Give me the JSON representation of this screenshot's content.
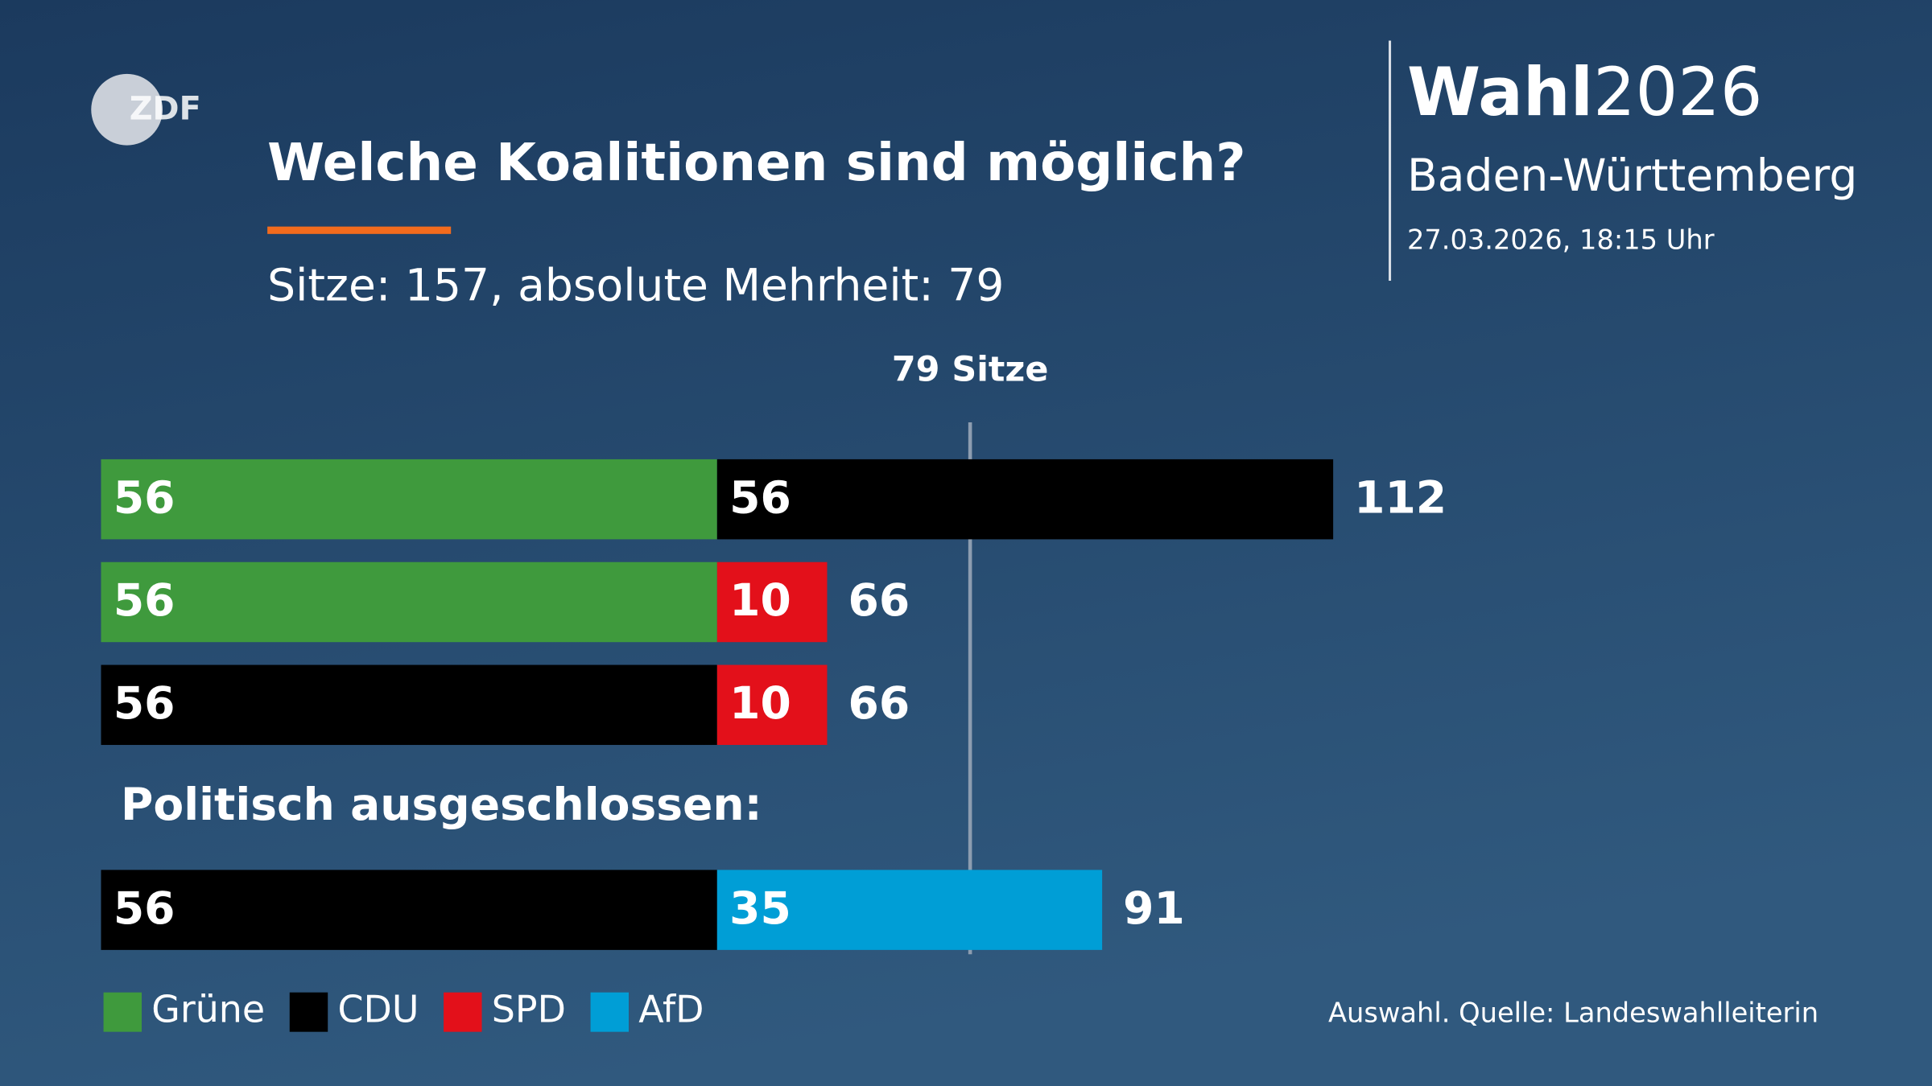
{
  "logo": "ZDF",
  "brand": {
    "bold": "Wahl",
    "year": "2026",
    "region": "Baden-Württemberg",
    "date": "27.03.2026, 18:15 Uhr"
  },
  "chart_data": {
    "type": "stacked-bar-horizontal",
    "title": "Welche Koalitionen sind möglich?",
    "subtitle": "Sitze: 157, absolute Mehrheit: 79",
    "categories": [
      null,
      null,
      null,
      null
    ],
    "series": [
      {
        "name": "Grüne",
        "color": "#3f9a3d",
        "values": [
          56,
          56,
          null,
          null
        ]
      },
      {
        "name": "CDU",
        "color": "#000000",
        "values": [
          56,
          null,
          56,
          56
        ]
      },
      {
        "name": "SPD",
        "color": "#e3101a",
        "values": [
          null,
          10,
          10,
          null
        ]
      },
      {
        "name": "AfD",
        "color": "#009ed6",
        "values": [
          null,
          null,
          null,
          35
        ]
      }
    ],
    "totals": [
      112,
      66,
      66,
      91
    ],
    "threshold": {
      "value": 79,
      "label": "79 Sitze"
    },
    "annotation": "Politisch ausgeschlossen:",
    "xlim": [
      0,
      112
    ],
    "source": "Auswahl. Quelle: Landeswahlleiterin"
  }
}
